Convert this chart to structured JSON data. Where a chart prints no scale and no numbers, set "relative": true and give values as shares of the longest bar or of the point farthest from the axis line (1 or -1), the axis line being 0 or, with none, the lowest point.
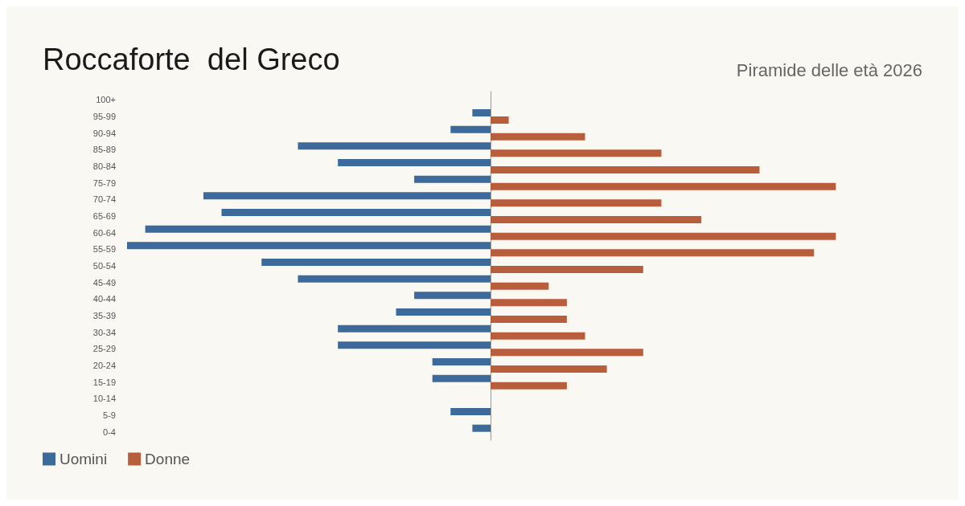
{
  "chart_data": {
    "type": "bar",
    "orientation": "horizontal",
    "relative": true,
    "title": "Roccaforte  del Greco",
    "subtitle": "Piramide delle età 2026",
    "categories": [
      "100+",
      "95-99",
      "90-94",
      "85-89",
      "80-84",
      "75-79",
      "70-74",
      "65-69",
      "60-64",
      "55-59",
      "50-54",
      "45-49",
      "40-44",
      "35-39",
      "30-34",
      "25-29",
      "20-24",
      "15-19",
      "10-14",
      "5-9",
      "0-4"
    ],
    "series": [
      {
        "name": "Uomini",
        "color": "#3b6a9b",
        "values": [
          0,
          -0.05,
          -0.11,
          -0.53,
          -0.42,
          -0.21,
          -0.79,
          -0.74,
          -0.95,
          -1,
          -0.63,
          -0.53,
          -0.21,
          -0.26,
          -0.42,
          -0.42,
          -0.16,
          -0.16,
          0,
          -0.11,
          -0.05
        ]
      },
      {
        "name": "Donne",
        "color": "#b95e3d",
        "values": [
          0,
          0.05,
          0.26,
          0.47,
          0.74,
          0.95,
          0.47,
          0.58,
          0.95,
          0.89,
          0.42,
          0.16,
          0.21,
          0.21,
          0.26,
          0.42,
          0.32,
          0.21,
          0,
          0,
          0
        ]
      }
    ],
    "legend": "bottom left"
  }
}
